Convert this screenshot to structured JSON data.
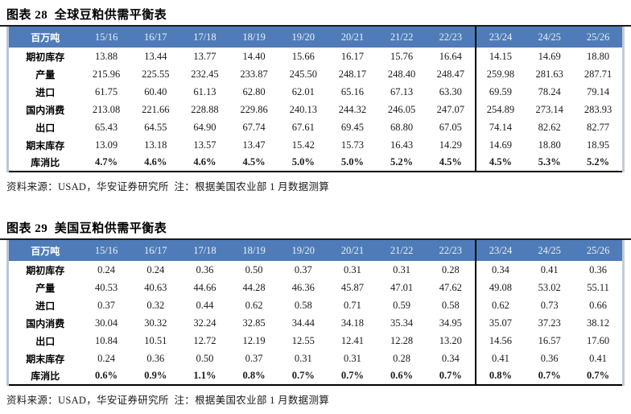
{
  "palette": {
    "header_blue": "#4f7cb8",
    "header_text": "#eaf0f9",
    "title_rule": "#1c1c1c",
    "edge_strip": "#b9c6d8",
    "divider": "#000000"
  },
  "tables": [
    {
      "title": "图表 28  全球豆粕供需平衡表",
      "unit_header": "百万吨",
      "columns": [
        "15/16",
        "16/17",
        "17/18",
        "18/19",
        "19/20",
        "20/21",
        "21/22",
        "22/23",
        "23/24",
        "24/25",
        "25/26"
      ],
      "forecast_start_column": "23/24",
      "rows": [
        {
          "label": "期初库存",
          "values": [
            "13.88",
            "13.44",
            "13.77",
            "14.40",
            "15.66",
            "16.17",
            "15.76",
            "16.64",
            "14.15",
            "14.69",
            "18.80"
          ]
        },
        {
          "label": "产量",
          "values": [
            "215.96",
            "225.55",
            "232.45",
            "233.87",
            "245.50",
            "248.17",
            "248.40",
            "248.47",
            "259.98",
            "281.63",
            "287.71"
          ]
        },
        {
          "label": "进口",
          "values": [
            "61.75",
            "60.40",
            "61.13",
            "62.80",
            "62.01",
            "65.16",
            "67.13",
            "63.30",
            "69.59",
            "78.24",
            "79.14"
          ]
        },
        {
          "label": "国内消费",
          "values": [
            "213.08",
            "221.66",
            "228.88",
            "229.86",
            "240.13",
            "244.32",
            "246.05",
            "247.07",
            "254.89",
            "273.14",
            "283.93"
          ]
        },
        {
          "label": "出口",
          "values": [
            "65.43",
            "64.55",
            "64.90",
            "67.74",
            "67.61",
            "69.45",
            "68.80",
            "67.05",
            "74.14",
            "82.62",
            "82.77"
          ]
        },
        {
          "label": "期末库存",
          "values": [
            "13.09",
            "13.18",
            "13.57",
            "13.47",
            "15.42",
            "15.73",
            "16.43",
            "14.29",
            "14.69",
            "18.80",
            "18.95"
          ]
        },
        {
          "label": "库消比",
          "bold": true,
          "values": [
            "4.7%",
            "4.6%",
            "4.6%",
            "4.5%",
            "5.0%",
            "5.0%",
            "5.2%",
            "4.5%",
            "4.5%",
            "5.3%",
            "5.2%"
          ]
        }
      ],
      "source": "资料来源：USAD，华安证券研究所  注：根据美国农业部 1 月数据测算"
    },
    {
      "title": "图表 29  美国豆粕供需平衡表",
      "unit_header": "百万吨",
      "columns": [
        "15/16",
        "16/17",
        "17/18",
        "18/19",
        "19/20",
        "20/21",
        "21/22",
        "22/23",
        "23/24",
        "24/25",
        "25/26"
      ],
      "forecast_start_column": "23/24",
      "rows": [
        {
          "label": "期初库存",
          "values": [
            "0.24",
            "0.24",
            "0.36",
            "0.50",
            "0.37",
            "0.31",
            "0.31",
            "0.28",
            "0.34",
            "0.41",
            "0.36"
          ]
        },
        {
          "label": "产量",
          "values": [
            "40.53",
            "40.63",
            "44.66",
            "44.28",
            "46.36",
            "45.87",
            "47.01",
            "47.62",
            "49.08",
            "53.02",
            "55.11"
          ]
        },
        {
          "label": "进口",
          "values": [
            "0.37",
            "0.32",
            "0.44",
            "0.62",
            "0.58",
            "0.71",
            "0.59",
            "0.58",
            "0.62",
            "0.73",
            "0.66"
          ]
        },
        {
          "label": "国内消费",
          "values": [
            "30.04",
            "30.32",
            "32.24",
            "32.85",
            "34.44",
            "34.18",
            "35.34",
            "34.95",
            "35.07",
            "37.23",
            "38.12"
          ]
        },
        {
          "label": "出口",
          "values": [
            "10.84",
            "10.51",
            "12.72",
            "12.19",
            "12.55",
            "12.41",
            "12.28",
            "13.20",
            "14.56",
            "16.57",
            "17.60"
          ]
        },
        {
          "label": "期末库存",
          "values": [
            "0.24",
            "0.36",
            "0.50",
            "0.37",
            "0.31",
            "0.31",
            "0.28",
            "0.34",
            "0.41",
            "0.36",
            "0.41"
          ]
        },
        {
          "label": "库消比",
          "bold": true,
          "values": [
            "0.6%",
            "0.9%",
            "1.1%",
            "0.8%",
            "0.7%",
            "0.7%",
            "0.6%",
            "0.7%",
            "0.8%",
            "0.7%",
            "0.7%"
          ]
        }
      ],
      "source": "资料来源：USAD，华安证券研究所  注：根据美国农业部 1 月数据测算"
    }
  ]
}
